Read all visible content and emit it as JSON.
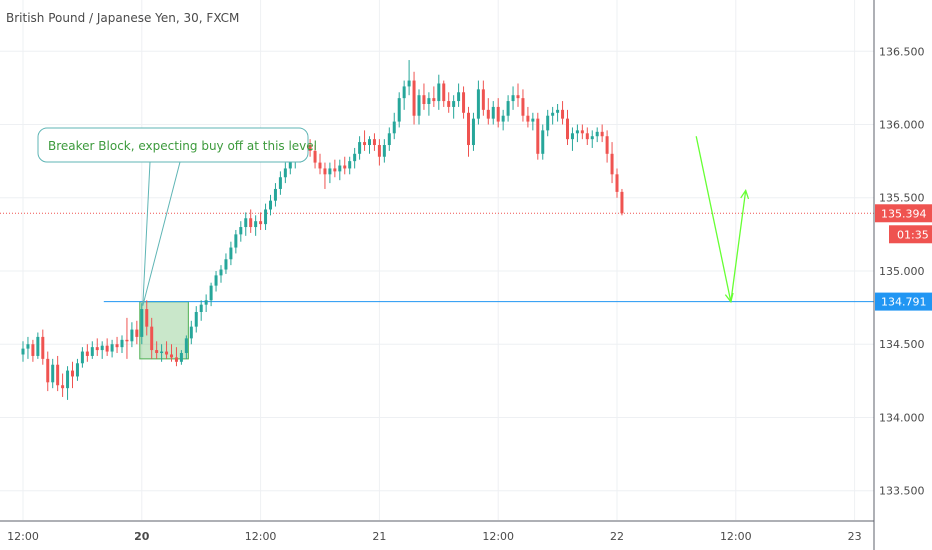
{
  "chart_data": {
    "type": "candlestick",
    "title": "British Pound / Japanese Yen, 30, FXCM",
    "ylim": [
      133.3,
      136.85
    ],
    "y_ticks": [
      "133.500",
      "134.000",
      "134.500",
      "135.000",
      "135.500",
      "136.000",
      "136.500"
    ],
    "y_tick_values": [
      133.5,
      134.0,
      134.5,
      135.0,
      135.5,
      136.0,
      136.5
    ],
    "x_ticks": [
      {
        "label": "12:00",
        "bar": 0,
        "bold": false
      },
      {
        "label": "20",
        "bar": 24,
        "bold": true
      },
      {
        "label": "12:00",
        "bar": 48,
        "bold": false
      },
      {
        "label": "21",
        "bar": 72,
        "bold": false
      },
      {
        "label": "12:00",
        "bar": 96,
        "bold": false
      },
      {
        "label": "22",
        "bar": 120,
        "bold": false
      },
      {
        "label": "12:00",
        "bar": 144,
        "bold": false
      },
      {
        "label": "23",
        "bar": 168,
        "bold": false
      }
    ],
    "grid": true,
    "last_price": {
      "label": "135.394",
      "value": 135.394,
      "countdown": "01:35",
      "color": "#ef5350"
    },
    "level": {
      "label": "134.791",
      "value": 134.791,
      "color": "#2196f3"
    },
    "annotation": {
      "text": "Breaker Block, expecting buy off at this level",
      "color": "#3c9a3c"
    },
    "breaker_block": {
      "bar_from": 24,
      "bar_to": 33,
      "y_from": 134.4,
      "y_to": 134.79,
      "color": "#4caf50"
    },
    "projection": [
      {
        "bar": 136,
        "value": 135.92
      },
      {
        "bar": 143,
        "value": 134.79
      },
      {
        "bar": 146,
        "value": 135.55
      }
    ],
    "colors": {
      "up": "#26a69a",
      "down": "#ef5350",
      "grid": "#eef0f3",
      "axis": "#5d606b"
    },
    "candles": [
      [
        134.43,
        134.52,
        134.38,
        134.47
      ],
      [
        134.47,
        134.55,
        134.4,
        134.5
      ],
      [
        134.5,
        134.53,
        134.38,
        134.42
      ],
      [
        134.42,
        134.58,
        134.4,
        134.55
      ],
      [
        134.55,
        134.6,
        134.36,
        134.4
      ],
      [
        134.4,
        134.45,
        134.18,
        134.24
      ],
      [
        134.24,
        134.4,
        134.2,
        134.36
      ],
      [
        134.36,
        134.42,
        134.18,
        134.22
      ],
      [
        134.22,
        134.3,
        134.14,
        134.2
      ],
      [
        134.2,
        134.35,
        134.12,
        134.32
      ],
      [
        134.32,
        134.38,
        134.2,
        134.28
      ],
      [
        134.28,
        134.4,
        134.25,
        134.37
      ],
      [
        134.37,
        134.48,
        134.34,
        134.45
      ],
      [
        134.45,
        134.5,
        134.38,
        134.42
      ],
      [
        134.42,
        134.52,
        134.4,
        134.48
      ],
      [
        134.48,
        134.54,
        134.42,
        134.46
      ],
      [
        134.46,
        134.52,
        134.4,
        134.49
      ],
      [
        134.49,
        134.54,
        134.42,
        134.45
      ],
      [
        134.45,
        134.53,
        134.41,
        134.5
      ],
      [
        134.5,
        134.55,
        134.44,
        134.48
      ],
      [
        134.48,
        134.56,
        134.44,
        134.53
      ],
      [
        134.53,
        134.68,
        134.4,
        134.52
      ],
      [
        134.52,
        134.65,
        134.48,
        134.6
      ],
      [
        134.6,
        134.66,
        134.5,
        134.55
      ],
      [
        134.55,
        134.78,
        134.5,
        134.74
      ],
      [
        134.74,
        134.8,
        134.56,
        134.62
      ],
      [
        134.62,
        134.68,
        134.4,
        134.46
      ],
      [
        134.46,
        134.52,
        134.4,
        134.44
      ],
      [
        134.44,
        134.5,
        134.38,
        134.45
      ],
      [
        134.45,
        134.52,
        134.4,
        134.43
      ],
      [
        134.43,
        134.5,
        134.38,
        134.41
      ],
      [
        134.41,
        134.48,
        134.35,
        134.38
      ],
      [
        134.38,
        134.46,
        134.36,
        134.44
      ],
      [
        134.44,
        134.56,
        134.4,
        134.54
      ],
      [
        134.54,
        134.66,
        134.5,
        134.62
      ],
      [
        134.62,
        134.76,
        134.58,
        134.72
      ],
      [
        134.72,
        134.8,
        134.66,
        134.77
      ],
      [
        134.77,
        134.84,
        134.72,
        134.8
      ],
      [
        134.8,
        134.92,
        134.76,
        134.9
      ],
      [
        134.9,
        135.0,
        134.86,
        134.97
      ],
      [
        134.97,
        135.04,
        134.92,
        135.01
      ],
      [
        135.01,
        135.12,
        134.98,
        135.08
      ],
      [
        135.08,
        135.2,
        135.04,
        135.16
      ],
      [
        135.16,
        135.28,
        135.12,
        135.25
      ],
      [
        135.25,
        135.34,
        135.2,
        135.3
      ],
      [
        135.3,
        135.4,
        135.24,
        135.36
      ],
      [
        135.36,
        135.42,
        135.26,
        135.3
      ],
      [
        135.3,
        135.38,
        135.24,
        135.34
      ],
      [
        135.34,
        135.4,
        135.28,
        135.32
      ],
      [
        135.32,
        135.46,
        135.28,
        135.42
      ],
      [
        135.42,
        135.52,
        135.38,
        135.48
      ],
      [
        135.48,
        135.6,
        135.44,
        135.56
      ],
      [
        135.56,
        135.68,
        135.52,
        135.64
      ],
      [
        135.64,
        135.74,
        135.6,
        135.7
      ],
      [
        135.7,
        135.8,
        135.66,
        135.76
      ],
      [
        135.76,
        135.84,
        135.7,
        135.8
      ],
      [
        135.8,
        135.88,
        135.74,
        135.84
      ],
      [
        135.84,
        135.9,
        135.78,
        135.86
      ],
      [
        135.86,
        135.9,
        135.78,
        135.82
      ],
      [
        135.82,
        135.86,
        135.7,
        135.74
      ],
      [
        135.74,
        135.8,
        135.66,
        135.7
      ],
      [
        135.7,
        135.74,
        135.56,
        135.66
      ],
      [
        135.66,
        135.74,
        135.6,
        135.7
      ],
      [
        135.7,
        135.76,
        135.64,
        135.68
      ],
      [
        135.68,
        135.76,
        135.62,
        135.72
      ],
      [
        135.72,
        135.78,
        135.66,
        135.7
      ],
      [
        135.7,
        135.78,
        135.66,
        135.75
      ],
      [
        135.75,
        135.84,
        135.7,
        135.8
      ],
      [
        135.8,
        135.92,
        135.76,
        135.88
      ],
      [
        135.88,
        135.96,
        135.82,
        135.86
      ],
      [
        135.86,
        135.92,
        135.8,
        135.9
      ],
      [
        135.9,
        135.94,
        135.82,
        135.86
      ],
      [
        135.86,
        135.9,
        135.72,
        135.78
      ],
      [
        135.78,
        135.9,
        135.74,
        135.86
      ],
      [
        135.86,
        135.98,
        135.82,
        135.94
      ],
      [
        135.94,
        136.08,
        135.9,
        136.02
      ],
      [
        136.02,
        136.22,
        135.98,
        136.18
      ],
      [
        136.18,
        136.3,
        136.1,
        136.26
      ],
      [
        136.26,
        136.44,
        136.2,
        136.3
      ],
      [
        136.3,
        136.36,
        136.0,
        136.06
      ],
      [
        136.06,
        136.24,
        136.0,
        136.2
      ],
      [
        136.2,
        136.28,
        136.1,
        136.14
      ],
      [
        136.14,
        136.22,
        136.06,
        136.18
      ],
      [
        136.18,
        136.26,
        136.12,
        136.16
      ],
      [
        136.16,
        136.34,
        136.1,
        136.28
      ],
      [
        136.28,
        136.3,
        136.12,
        136.16
      ],
      [
        136.16,
        136.22,
        136.08,
        136.12
      ],
      [
        136.12,
        136.2,
        136.04,
        136.16
      ],
      [
        136.16,
        136.28,
        136.12,
        136.22
      ],
      [
        136.22,
        136.26,
        136.04,
        136.08
      ],
      [
        136.08,
        136.12,
        135.78,
        135.86
      ],
      [
        135.86,
        136.08,
        135.82,
        136.04
      ],
      [
        136.04,
        136.3,
        136.0,
        136.24
      ],
      [
        136.24,
        136.3,
        136.06,
        136.1
      ],
      [
        136.1,
        136.18,
        136.0,
        136.04
      ],
      [
        136.04,
        136.16,
        136.0,
        136.12
      ],
      [
        136.12,
        136.18,
        135.98,
        136.02
      ],
      [
        136.02,
        136.1,
        135.96,
        136.06
      ],
      [
        136.06,
        136.2,
        136.02,
        136.16
      ],
      [
        136.16,
        136.26,
        136.1,
        136.2
      ],
      [
        136.2,
        136.28,
        136.12,
        136.18
      ],
      [
        136.18,
        136.24,
        136.02,
        136.06
      ],
      [
        136.06,
        136.12,
        135.98,
        136.02
      ],
      [
        136.02,
        136.08,
        135.96,
        136.04
      ],
      [
        136.04,
        136.08,
        135.76,
        135.8
      ],
      [
        135.8,
        136.0,
        135.76,
        135.96
      ],
      [
        135.96,
        136.1,
        135.92,
        136.06
      ],
      [
        136.06,
        136.12,
        136.0,
        136.08
      ],
      [
        136.08,
        136.14,
        136.02,
        136.1
      ],
      [
        136.1,
        136.16,
        136.0,
        136.04
      ],
      [
        136.04,
        136.1,
        135.86,
        135.9
      ],
      [
        135.9,
        135.98,
        135.82,
        135.94
      ],
      [
        135.94,
        136.0,
        135.88,
        135.96
      ],
      [
        135.96,
        136.0,
        135.9,
        135.94
      ],
      [
        135.94,
        135.98,
        135.86,
        135.9
      ],
      [
        135.9,
        135.96,
        135.84,
        135.92
      ],
      [
        135.92,
        135.98,
        135.88,
        135.95
      ],
      [
        135.95,
        136.0,
        135.88,
        135.92
      ],
      [
        135.92,
        135.96,
        135.74,
        135.8
      ],
      [
        135.8,
        135.88,
        135.6,
        135.66
      ],
      [
        135.66,
        135.7,
        135.5,
        135.54
      ],
      [
        135.54,
        135.56,
        135.38,
        135.394
      ]
    ]
  }
}
